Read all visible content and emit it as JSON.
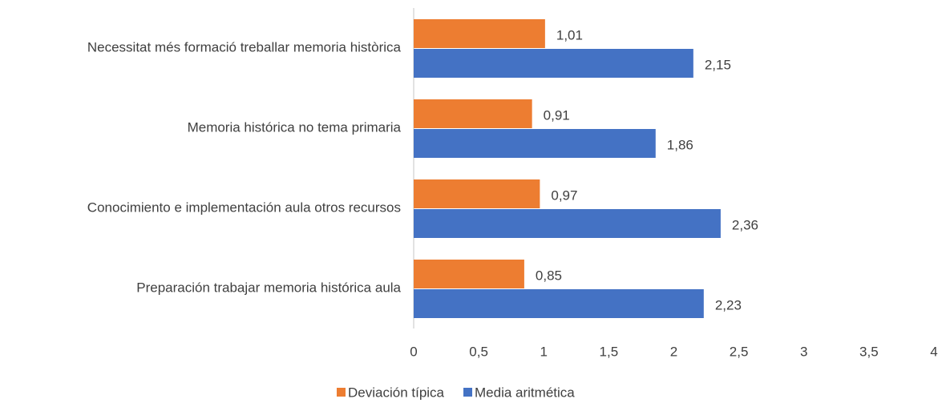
{
  "chart_data": {
    "type": "hbar",
    "categories": [
      "Necessitat més formació treballar memoria històrica",
      "Memoria histórica no tema primaria",
      "Conocimiento e implementación aula otros recursos",
      "Preparación trabajar memoria histórica aula"
    ],
    "series": [
      {
        "name": "Deviación típica",
        "color": "#ed7d31",
        "values": [
          1.01,
          0.91,
          0.97,
          0.85
        ],
        "value_labels": [
          "1,01",
          "0,91",
          "0,97",
          "0,85"
        ]
      },
      {
        "name": "Media aritmética",
        "color": "#4472c4",
        "values": [
          2.15,
          1.86,
          2.36,
          2.23
        ],
        "value_labels": [
          "2,15",
          "1,86",
          "2,36",
          "2,23"
        ]
      }
    ],
    "xlim": [
      0,
      4
    ],
    "xticks": [
      0,
      {
        "value": 0.5,
        "label": "0,5"
      },
      1,
      {
        "value": 1.5,
        "label": "1,5"
      },
      2,
      {
        "value": 2.5,
        "label": "2,5"
      },
      3,
      {
        "value": 3.5,
        "label": "3,5"
      },
      4
    ],
    "grid": false,
    "legend": "bottom"
  }
}
